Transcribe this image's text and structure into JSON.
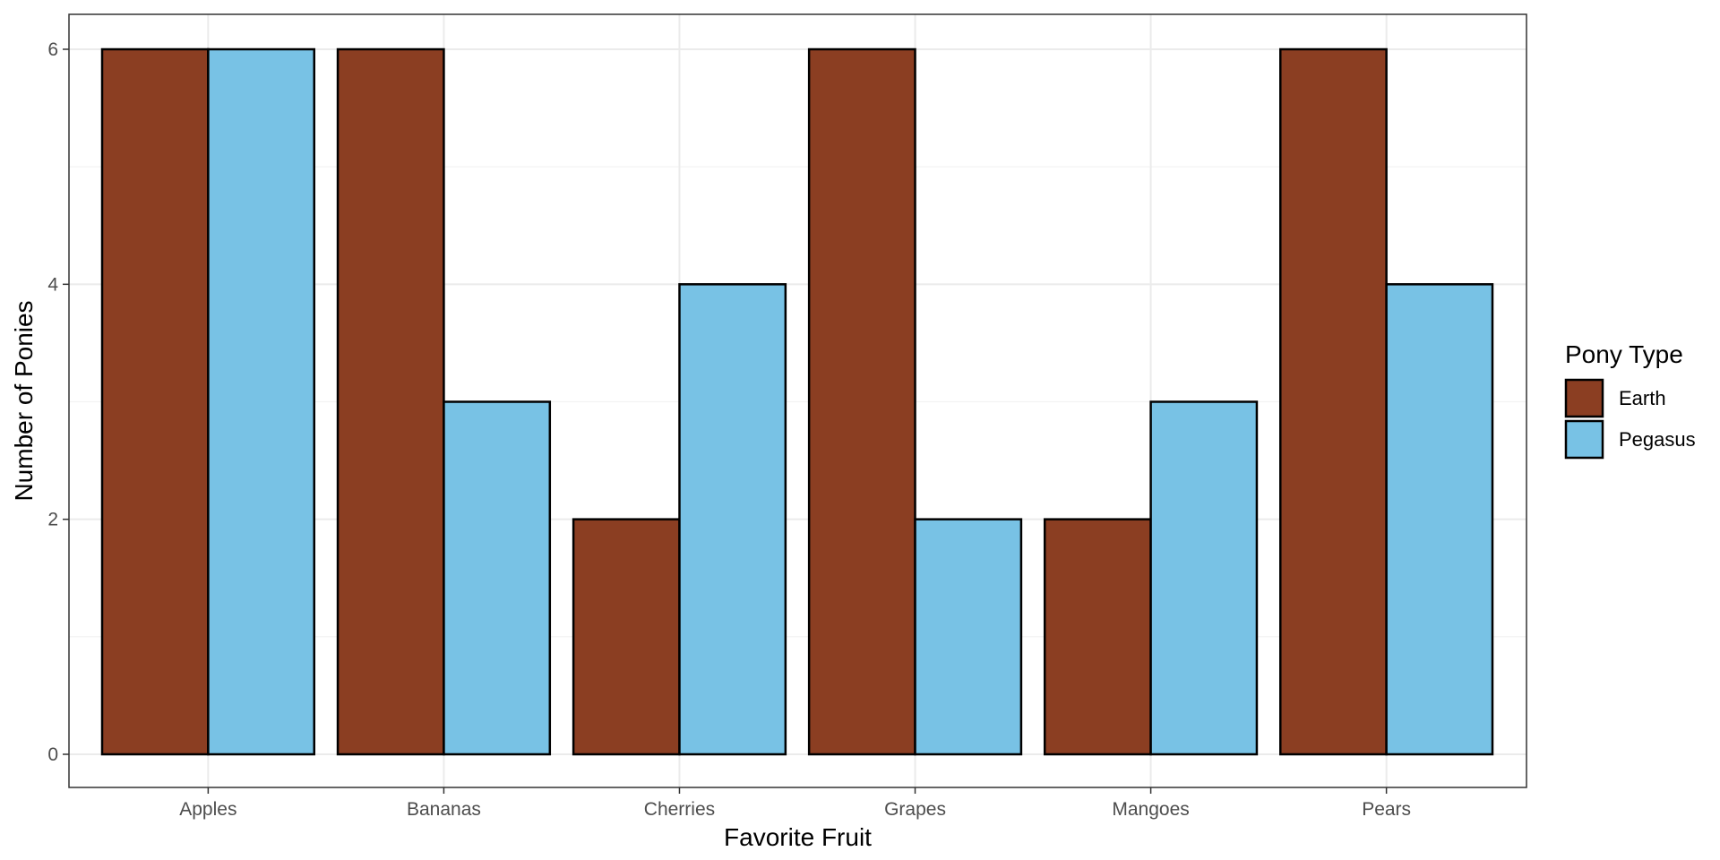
{
  "chart_data": {
    "type": "bar",
    "title": "",
    "xlabel": "Favorite Fruit",
    "ylabel": "Number of Ponies",
    "categories": [
      "Apples",
      "Bananas",
      "Cherries",
      "Grapes",
      "Mangoes",
      "Pears"
    ],
    "series": [
      {
        "name": "Earth",
        "color": "#8B3E22",
        "values": [
          6,
          6,
          2,
          6,
          2,
          6
        ]
      },
      {
        "name": "Pegasus",
        "color": "#78C2E5",
        "values": [
          6,
          3,
          4,
          2,
          3,
          4
        ]
      }
    ],
    "ylim": [
      0,
      6.3
    ],
    "yticks": [
      0,
      2,
      4,
      6
    ],
    "grid": true,
    "legend": {
      "title": "Pony Type",
      "position": "right"
    },
    "colors": {
      "bar_outline": "#000000",
      "grid_major": "#ebebeb",
      "grid_minor": "#f2f2f2",
      "panel_border": "#333333"
    }
  }
}
